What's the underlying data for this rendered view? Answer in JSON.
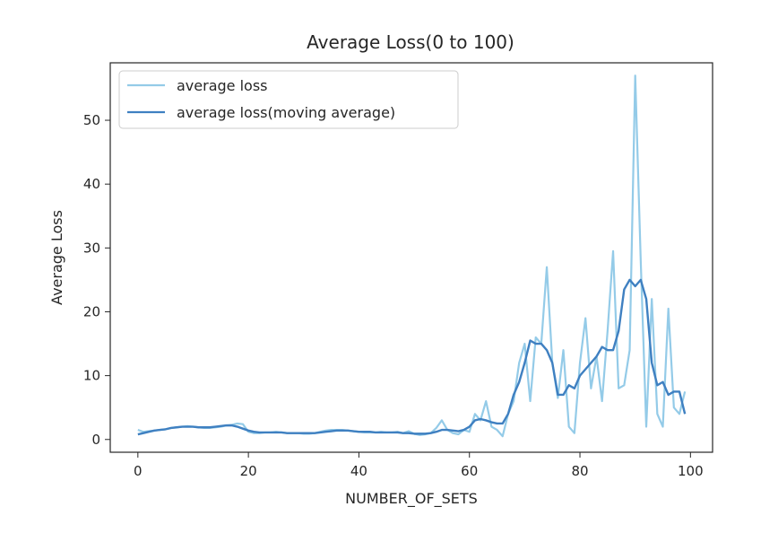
{
  "chart_data": {
    "type": "line",
    "title": "Average Loss(0 to 100)",
    "xlabel": "NUMBER_OF_SETS",
    "ylabel": "Average Loss",
    "xlim": [
      -5,
      104
    ],
    "ylim": [
      -2,
      59
    ],
    "xticks": [
      0,
      20,
      40,
      60,
      80,
      100
    ],
    "yticks": [
      0,
      10,
      20,
      30,
      40,
      50
    ],
    "grid": false,
    "legend_position": "upper left",
    "series": [
      {
        "name": "average loss",
        "color": "#94cbe8",
        "x": [
          0,
          1,
          2,
          3,
          4,
          5,
          6,
          7,
          8,
          9,
          10,
          11,
          12,
          13,
          14,
          15,
          16,
          17,
          18,
          19,
          20,
          21,
          22,
          23,
          24,
          25,
          26,
          27,
          28,
          29,
          30,
          31,
          32,
          33,
          34,
          35,
          36,
          37,
          38,
          39,
          40,
          41,
          42,
          43,
          44,
          45,
          46,
          47,
          48,
          49,
          50,
          51,
          52,
          53,
          54,
          55,
          56,
          57,
          58,
          59,
          60,
          61,
          62,
          63,
          64,
          65,
          66,
          67,
          68,
          69,
          70,
          71,
          72,
          73,
          74,
          75,
          76,
          77,
          78,
          79,
          80,
          81,
          82,
          83,
          84,
          85,
          86,
          87,
          88,
          89,
          90,
          91,
          92,
          93,
          94,
          95,
          96,
          97,
          98,
          99
        ],
        "values": [
          1.5,
          1.2,
          1.3,
          1.4,
          1.5,
          1.6,
          1.8,
          1.9,
          2.0,
          2.1,
          2.0,
          1.9,
          1.8,
          1.8,
          1.9,
          2.0,
          2.2,
          2.3,
          2.5,
          2.4,
          1.2,
          1.0,
          1.0,
          1.1,
          1.1,
          1.2,
          1.1,
          1.0,
          1.0,
          1.0,
          0.9,
          0.9,
          1.0,
          1.2,
          1.4,
          1.5,
          1.5,
          1.5,
          1.4,
          1.3,
          1.2,
          1.1,
          1.1,
          1.1,
          1.2,
          1.1,
          1.1,
          1.2,
          1.0,
          1.3,
          0.9,
          0.7,
          0.8,
          1.0,
          1.8,
          3.0,
          1.5,
          1.0,
          0.8,
          1.5,
          1.2,
          4.0,
          3.0,
          6.0,
          2.0,
          1.5,
          0.5,
          4.0,
          6.0,
          12.0,
          15.0,
          6.0,
          16.0,
          15.0,
          27.0,
          12.0,
          6.5,
          14.0,
          2.0,
          1.0,
          12.0,
          19.0,
          8.0,
          13.0,
          6.0,
          17.0,
          29.5,
          8.0,
          8.5,
          14.0,
          57.0,
          28.0,
          2.0,
          22.0,
          4.0,
          2.0,
          20.5,
          5.0,
          4.0,
          7.5
        ]
      },
      {
        "name": "average loss(moving average)",
        "color": "#3f80c1",
        "x": [
          0,
          1,
          2,
          3,
          4,
          5,
          6,
          7,
          8,
          9,
          10,
          11,
          12,
          13,
          14,
          15,
          16,
          17,
          18,
          19,
          20,
          21,
          22,
          23,
          24,
          25,
          26,
          27,
          28,
          29,
          30,
          31,
          32,
          33,
          34,
          35,
          36,
          37,
          38,
          39,
          40,
          41,
          42,
          43,
          44,
          45,
          46,
          47,
          48,
          49,
          50,
          51,
          52,
          53,
          54,
          55,
          56,
          57,
          58,
          59,
          60,
          61,
          62,
          63,
          64,
          65,
          66,
          67,
          68,
          69,
          70,
          71,
          72,
          73,
          74,
          75,
          76,
          77,
          78,
          79,
          80,
          81,
          82,
          83,
          84,
          85,
          86,
          87,
          88,
          89,
          90,
          91,
          92,
          93,
          94,
          95,
          96,
          97,
          98,
          99
        ],
        "values": [
          0.8,
          1.0,
          1.2,
          1.4,
          1.5,
          1.6,
          1.8,
          1.9,
          2.0,
          2.0,
          2.0,
          1.9,
          1.9,
          1.9,
          2.0,
          2.1,
          2.2,
          2.2,
          2.0,
          1.7,
          1.4,
          1.2,
          1.1,
          1.1,
          1.1,
          1.1,
          1.1,
          1.0,
          1.0,
          1.0,
          1.0,
          1.0,
          1.0,
          1.1,
          1.2,
          1.3,
          1.4,
          1.4,
          1.4,
          1.3,
          1.2,
          1.2,
          1.2,
          1.1,
          1.1,
          1.1,
          1.1,
          1.1,
          1.0,
          1.0,
          0.9,
          0.9,
          0.9,
          1.0,
          1.2,
          1.5,
          1.5,
          1.4,
          1.3,
          1.5,
          2.0,
          3.0,
          3.2,
          3.0,
          2.7,
          2.5,
          2.5,
          4.0,
          7.0,
          9.0,
          12.0,
          15.5,
          15.0,
          15.0,
          14.0,
          12.0,
          7.0,
          7.0,
          8.5,
          8.0,
          10.0,
          11.0,
          12.0,
          13.0,
          14.5,
          14.0,
          14.0,
          17.0,
          23.5,
          25.0,
          24.0,
          25.0,
          22.0,
          12.0,
          8.5,
          9.0,
          7.0,
          7.5,
          7.5,
          4.0
        ]
      }
    ]
  }
}
